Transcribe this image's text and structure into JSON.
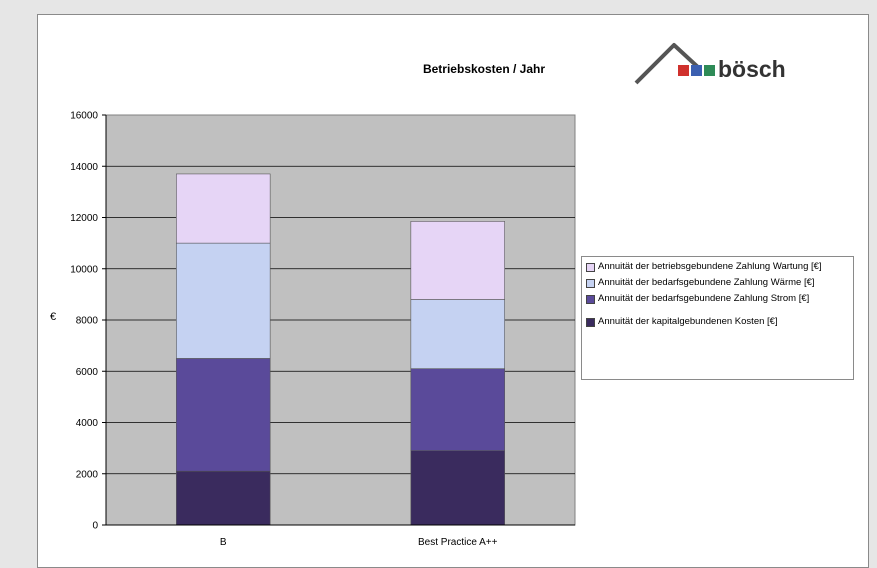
{
  "logo": {
    "text": "bösch",
    "square_colors": [
      "#d0312d",
      "#3b5fb0",
      "#2e8b57"
    ]
  },
  "colors": {
    "plot_bg": "#c0c0c0",
    "grid": "#000000",
    "series": [
      "#3a2b5e",
      "#5a4a9a",
      "#c5d2f2",
      "#e6d5f6"
    ]
  },
  "chart_data": {
    "type": "bar",
    "stacked": true,
    "title": "Betriebskosten / Jahr",
    "xlabel": "",
    "ylabel": "€",
    "ylim": [
      0,
      16000
    ],
    "yticks": [
      0,
      2000,
      4000,
      6000,
      8000,
      10000,
      12000,
      14000,
      16000
    ],
    "grid": true,
    "legend_position": "right",
    "categories": [
      "B",
      "Best Practice A++"
    ],
    "series": [
      {
        "name": "Annuität der kapitalgebundenen Kosten [€]",
        "values": [
          2100,
          2900
        ]
      },
      {
        "name": "Annuität der bedarfsgebundene Zahlung Strom [€]",
        "values": [
          4400,
          3200
        ]
      },
      {
        "name": "Annuität der bedarfsgebundene Zahlung Wärme [€]",
        "values": [
          4500,
          2700
        ]
      },
      {
        "name": "Annuität der betriebsgebundene Zahlung Wartung [€]",
        "values": [
          2700,
          3050
        ]
      }
    ]
  }
}
